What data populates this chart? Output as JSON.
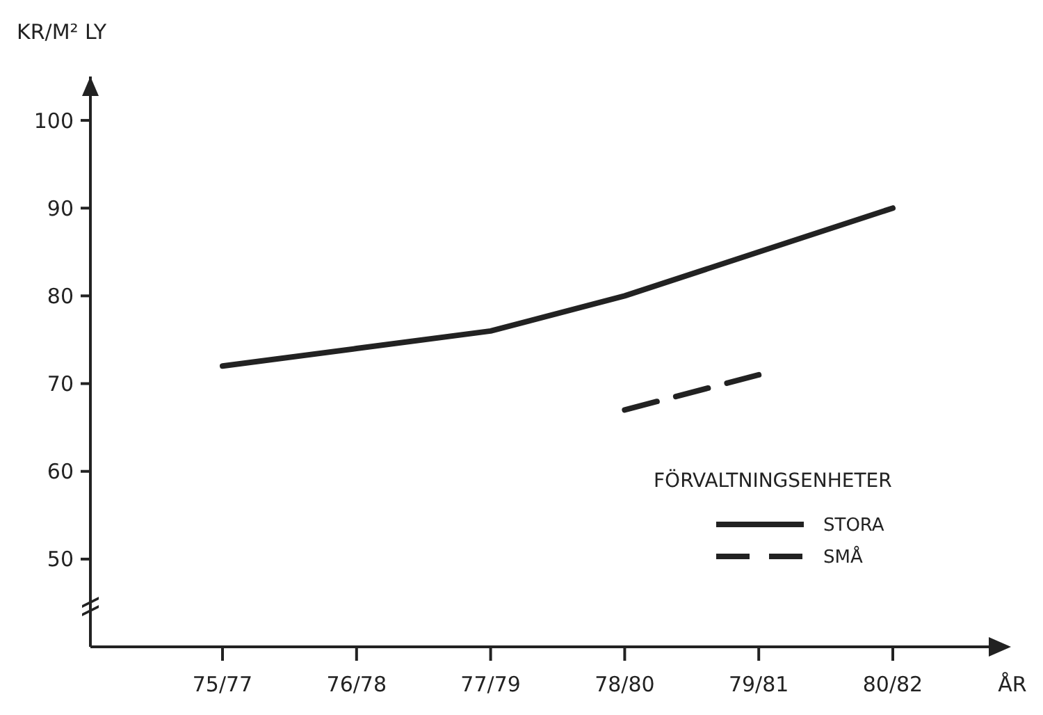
{
  "chart_data": {
    "type": "line",
    "xlabel": "ÅR",
    "ylabel": "KR/M² LY",
    "legend_title": "FÖRVALTNINGSENHETER",
    "legend": "bottom right",
    "grid": false,
    "categories": [
      "75/77",
      "76/78",
      "77/79",
      "78/80",
      "79/81",
      "80/82"
    ],
    "ylim": [
      40,
      105
    ],
    "yticks": [
      50,
      60,
      70,
      80,
      90,
      100
    ],
    "series": [
      {
        "name": "STORA",
        "color": "#222222",
        "line_style": "solid",
        "values": [
          72,
          74,
          76,
          80,
          85,
          90
        ]
      },
      {
        "name": "SMÅ",
        "color": "#222222",
        "line_style": "dashed",
        "values": [
          null,
          null,
          null,
          67,
          71,
          null
        ]
      }
    ]
  }
}
